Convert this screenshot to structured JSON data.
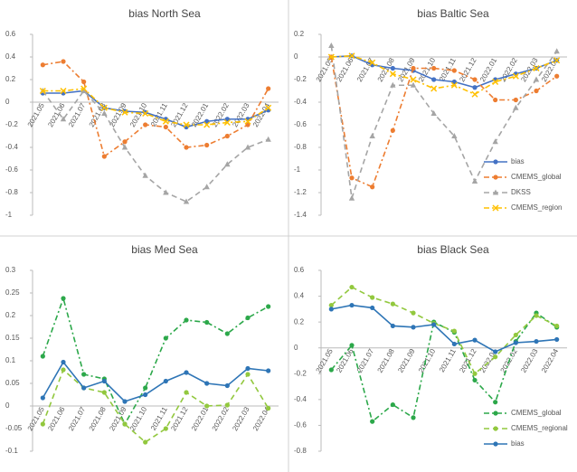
{
  "chart_data": [
    {
      "type": "line",
      "title": "bias North Sea",
      "categories": [
        "2021.05",
        "2021.06",
        "2021.07",
        "2021.08",
        "2021.09",
        "2021.10",
        "2021.11",
        "2021.12",
        "2022.01",
        "2022.02",
        "2022.03",
        "2022.04"
      ],
      "ylim": [
        -1,
        0.6
      ],
      "yticks": [
        -1,
        -0.8,
        -0.6,
        -0.4,
        -0.2,
        0,
        0.2,
        0.4,
        0.6
      ],
      "legend": "none",
      "series": [
        {
          "name": "bias",
          "color": "#4472c4",
          "style": "solid",
          "marker": "circle",
          "values": [
            0.08,
            0.08,
            0.1,
            -0.05,
            -0.08,
            -0.09,
            -0.15,
            -0.22,
            -0.17,
            -0.15,
            -0.15,
            -0.07
          ]
        },
        {
          "name": "CMEMS_global",
          "color": "#ed7d31",
          "style": "dashdot",
          "marker": "circle",
          "values": [
            0.33,
            0.36,
            0.18,
            -0.48,
            -0.35,
            -0.2,
            -0.22,
            -0.4,
            -0.38,
            -0.3,
            -0.2,
            0.12
          ]
        },
        {
          "name": "DKSS",
          "color": "#a5a5a5",
          "style": "dashed",
          "marker": "triangle",
          "values": [
            0.1,
            -0.15,
            0.1,
            -0.1,
            -0.4,
            -0.65,
            -0.8,
            -0.88,
            -0.75,
            -0.55,
            -0.4,
            -0.33
          ]
        },
        {
          "name": "CMEMS_region",
          "color": "#ffc000",
          "style": "dashdot",
          "marker": "cross",
          "values": [
            0.1,
            0.1,
            0.12,
            -0.05,
            -0.09,
            -0.1,
            -0.17,
            -0.2,
            -0.2,
            -0.18,
            -0.17,
            -0.05
          ]
        }
      ]
    },
    {
      "type": "line",
      "title": "bias Baltic Sea",
      "categories": [
        "2021.05",
        "2021.06",
        "2021.07",
        "2021.08",
        "2021.09",
        "2021.10",
        "2021.11",
        "2021.12",
        "2022.01",
        "2022.02",
        "2022.03",
        "2022.04"
      ],
      "ylim": [
        -1.4,
        0.2
      ],
      "yticks": [
        -1.4,
        -1.2,
        -1,
        -0.8,
        -0.6,
        -0.4,
        -0.2,
        0,
        0.2
      ],
      "legend": "lower right",
      "series": [
        {
          "name": "bias",
          "color": "#4472c4",
          "style": "solid",
          "marker": "circle",
          "values": [
            0,
            0.01,
            -0.07,
            -0.1,
            -0.12,
            -0.2,
            -0.22,
            -0.27,
            -0.2,
            -0.15,
            -0.1,
            -0.03
          ]
        },
        {
          "name": "CMEMS_global",
          "color": "#ed7d31",
          "style": "dashdot",
          "marker": "circle",
          "values": [
            0,
            -1.07,
            -1.15,
            -0.65,
            -0.1,
            -0.1,
            -0.12,
            -0.2,
            -0.38,
            -0.38,
            -0.3,
            -0.17
          ]
        },
        {
          "name": "DKSS",
          "color": "#a5a5a5",
          "style": "dashed",
          "marker": "triangle",
          "values": [
            0.1,
            -1.25,
            -0.7,
            -0.25,
            -0.25,
            -0.5,
            -0.7,
            -1.1,
            -0.75,
            -0.45,
            -0.2,
            0.05
          ]
        },
        {
          "name": "CMEMS_region",
          "color": "#ffc000",
          "style": "dashdot",
          "marker": "cross",
          "values": [
            0,
            0.01,
            -0.05,
            -0.15,
            -0.2,
            -0.28,
            -0.25,
            -0.33,
            -0.22,
            -0.17,
            -0.1,
            -0.03
          ]
        }
      ]
    },
    {
      "type": "line",
      "title": "bias Med Sea",
      "categories": [
        "2021.05",
        "2021.06",
        "2021.07",
        "2021.08",
        "2021.09",
        "2021.10",
        "2021.11",
        "2021.12",
        "2022.01",
        "2022.02",
        "2022.03",
        "2022.04"
      ],
      "ylim": [
        -0.1,
        0.3
      ],
      "yticks": [
        -0.1,
        -0.05,
        0,
        0.05,
        0.1,
        0.15,
        0.2,
        0.25,
        0.3
      ],
      "legend": "none",
      "series": [
        {
          "name": "CMEMS_global",
          "color": "#2ca84a",
          "style": "dashdot",
          "marker": "circle",
          "values": [
            0.11,
            0.238,
            0.07,
            0.06,
            -0.04,
            0.04,
            0.15,
            0.19,
            0.185,
            0.16,
            0.195,
            0.22
          ]
        },
        {
          "name": "CMEMS_regional",
          "color": "#92c83e",
          "style": "dashed",
          "marker": "circle",
          "values": [
            -0.04,
            0.08,
            0.04,
            0.03,
            -0.04,
            -0.08,
            -0.05,
            0.03,
            0,
            0.002,
            0.07,
            -0.005
          ]
        },
        {
          "name": "bias",
          "color": "#2e75b6",
          "style": "solid",
          "marker": "circle",
          "values": [
            0.018,
            0.097,
            0.04,
            0.055,
            0.01,
            0.025,
            0.055,
            0.074,
            0.05,
            0.045,
            0.083,
            0.078
          ]
        }
      ]
    },
    {
      "type": "line",
      "title": "bias Black Sea",
      "categories": [
        "2021.05",
        "2021.06",
        "2021.07",
        "2021.08",
        "2021.09",
        "2021.10",
        "2021.11",
        "2021.12",
        "2022.01",
        "2022.02",
        "2022.03",
        "2022.04"
      ],
      "ylim": [
        -0.8,
        0.6
      ],
      "yticks": [
        -0.8,
        -0.6,
        -0.4,
        -0.2,
        0,
        0.2,
        0.4,
        0.6
      ],
      "legend": "lower right",
      "series": [
        {
          "name": "CMEMS_global",
          "color": "#2ca84a",
          "style": "dashdot",
          "marker": "circle",
          "values": [
            -0.17,
            0.02,
            -0.57,
            -0.44,
            -0.54,
            0.2,
            0.12,
            -0.25,
            -0.42,
            0.05,
            0.27,
            0.16
          ]
        },
        {
          "name": "CMEMS_regional",
          "color": "#92c83e",
          "style": "dashed",
          "marker": "circle",
          "values": [
            0.33,
            0.47,
            0.39,
            0.34,
            0.27,
            0.19,
            0.13,
            -0.2,
            -0.07,
            0.1,
            0.25,
            0.17
          ]
        },
        {
          "name": "bias",
          "color": "#2e75b6",
          "style": "solid",
          "marker": "circle",
          "values": [
            0.3,
            0.33,
            0.31,
            0.17,
            0.16,
            0.18,
            0.03,
            0.06,
            -0.03,
            0.04,
            0.05,
            0.065
          ]
        }
      ]
    }
  ]
}
